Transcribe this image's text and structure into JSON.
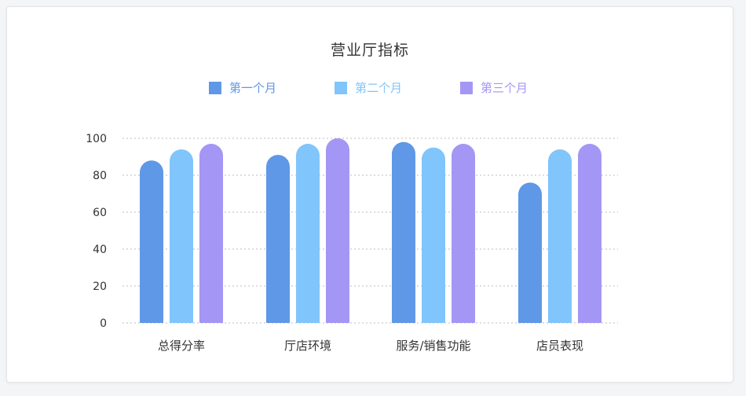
{
  "chart_data": {
    "type": "bar",
    "title": "营业厅指标",
    "categories": [
      "总得分率",
      "厅店环境",
      "服务/销售功能",
      "店员表现"
    ],
    "series": [
      {
        "name": "第一个月",
        "color": "#5f98e6",
        "values": [
          88,
          91,
          98,
          76
        ]
      },
      {
        "name": "第二个月",
        "color": "#80c5fb",
        "values": [
          94,
          97,
          95,
          94
        ]
      },
      {
        "name": "第三个月",
        "color": "#a496f5",
        "values": [
          97,
          100,
          97,
          97
        ]
      }
    ],
    "ylim": [
      0,
      100
    ],
    "yticks": [
      0,
      20,
      40,
      60,
      80,
      100
    ],
    "grid": true,
    "legend": "top"
  }
}
